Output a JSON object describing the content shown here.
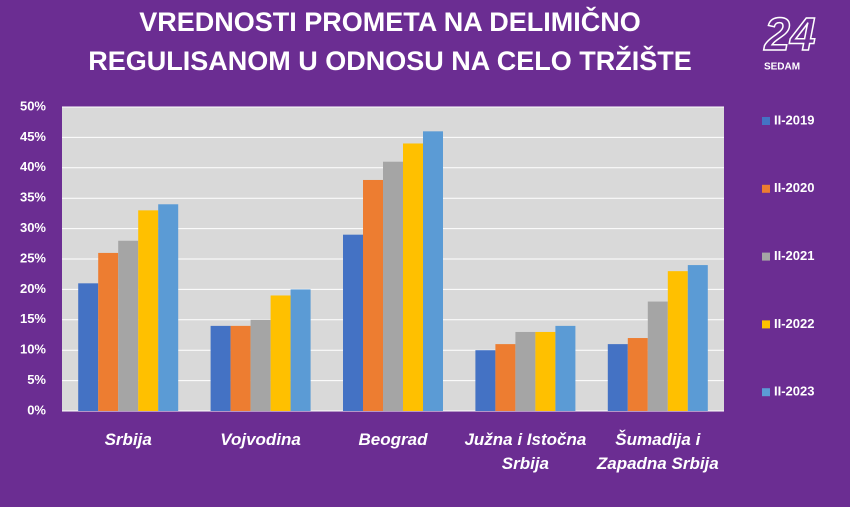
{
  "chart_data": {
    "type": "bar",
    "title": [
      "VREDNOSTI PROMETA NA DELIMIČNO",
      "REGULISANOM U ODNOSU NA CELO TRŽIŠTE"
    ],
    "categories": [
      "Srbija",
      "Vojvodina",
      "Beograd",
      "Južna i Istočna Srbija",
      "Šumadija i Zapadna Srbija"
    ],
    "series": [
      {
        "name": "II-2019",
        "color": "#4472c4",
        "values": [
          21,
          14,
          29,
          10,
          11
        ]
      },
      {
        "name": "II-2020",
        "color": "#ed7d31",
        "values": [
          26,
          14,
          38,
          11,
          12
        ]
      },
      {
        "name": "II-2021",
        "color": "#a5a5a5",
        "values": [
          28,
          15,
          41,
          13,
          18
        ]
      },
      {
        "name": "II-2022",
        "color": "#ffc000",
        "values": [
          33,
          19,
          44,
          13,
          23
        ]
      },
      {
        "name": "II-2023",
        "color": "#5b9bd5",
        "values": [
          34,
          20,
          46,
          14,
          24
        ]
      }
    ],
    "ylim": [
      0,
      50
    ],
    "yticks": [
      {
        "value": 0,
        "label": "0%"
      },
      {
        "value": 5,
        "label": "5%"
      },
      {
        "value": 10,
        "label": "10%"
      },
      {
        "value": 15,
        "label": "15%"
      },
      {
        "value": 20,
        "label": "20%"
      },
      {
        "value": 25,
        "label": "25%"
      },
      {
        "value": 30,
        "label": "30%"
      },
      {
        "value": 35,
        "label": "35%"
      },
      {
        "value": 40,
        "label": "40%"
      },
      {
        "value": 45,
        "label": "45%"
      },
      {
        "value": 50,
        "label": "50%"
      }
    ],
    "grid": true,
    "legend": "right"
  },
  "logo": {
    "number": "24",
    "text": "SEDAM"
  }
}
